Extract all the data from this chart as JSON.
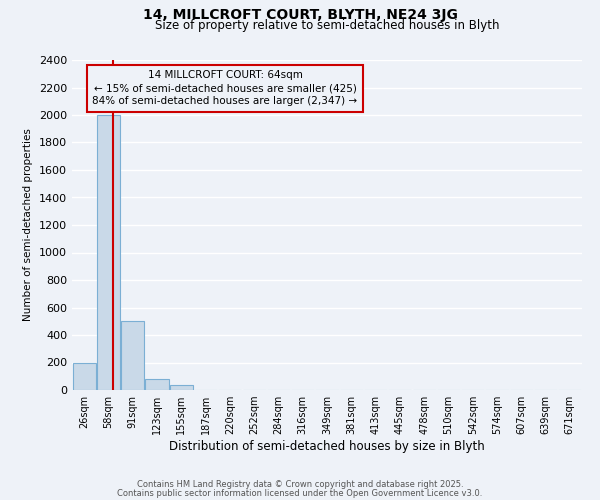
{
  "title": "14, MILLCROFT COURT, BLYTH, NE24 3JG",
  "subtitle": "Size of property relative to semi-detached houses in Blyth",
  "xlabel": "Distribution of semi-detached houses by size in Blyth",
  "ylabel": "Number of semi-detached properties",
  "bar_labels": [
    "26sqm",
    "58sqm",
    "91sqm",
    "123sqm",
    "155sqm",
    "187sqm",
    "220sqm",
    "252sqm",
    "284sqm",
    "316sqm",
    "349sqm",
    "381sqm",
    "413sqm",
    "445sqm",
    "478sqm",
    "510sqm",
    "542sqm",
    "574sqm",
    "607sqm",
    "639sqm",
    "671sqm"
  ],
  "bar_values": [
    200,
    2000,
    500,
    80,
    35,
    0,
    0,
    0,
    0,
    0,
    0,
    0,
    0,
    0,
    0,
    0,
    0,
    0,
    0,
    0,
    0
  ],
  "bar_color": "#c9d9e8",
  "bar_edgecolor": "#7bafd4",
  "ylim": [
    0,
    2400
  ],
  "yticks": [
    0,
    200,
    400,
    600,
    800,
    1000,
    1200,
    1400,
    1600,
    1800,
    2000,
    2200,
    2400
  ],
  "property_line_color": "#cc0000",
  "annotation_title": "14 MILLCROFT COURT: 64sqm",
  "annotation_line1": "← 15% of semi-detached houses are smaller (425)",
  "annotation_line2": "84% of semi-detached houses are larger (2,347) →",
  "annotation_box_color": "#cc0000",
  "footer_line1": "Contains HM Land Registry data © Crown copyright and database right 2025.",
  "footer_line2": "Contains public sector information licensed under the Open Government Licence v3.0.",
  "background_color": "#eef2f8",
  "grid_color": "#ffffff",
  "property_line_bar_index": 1.19
}
